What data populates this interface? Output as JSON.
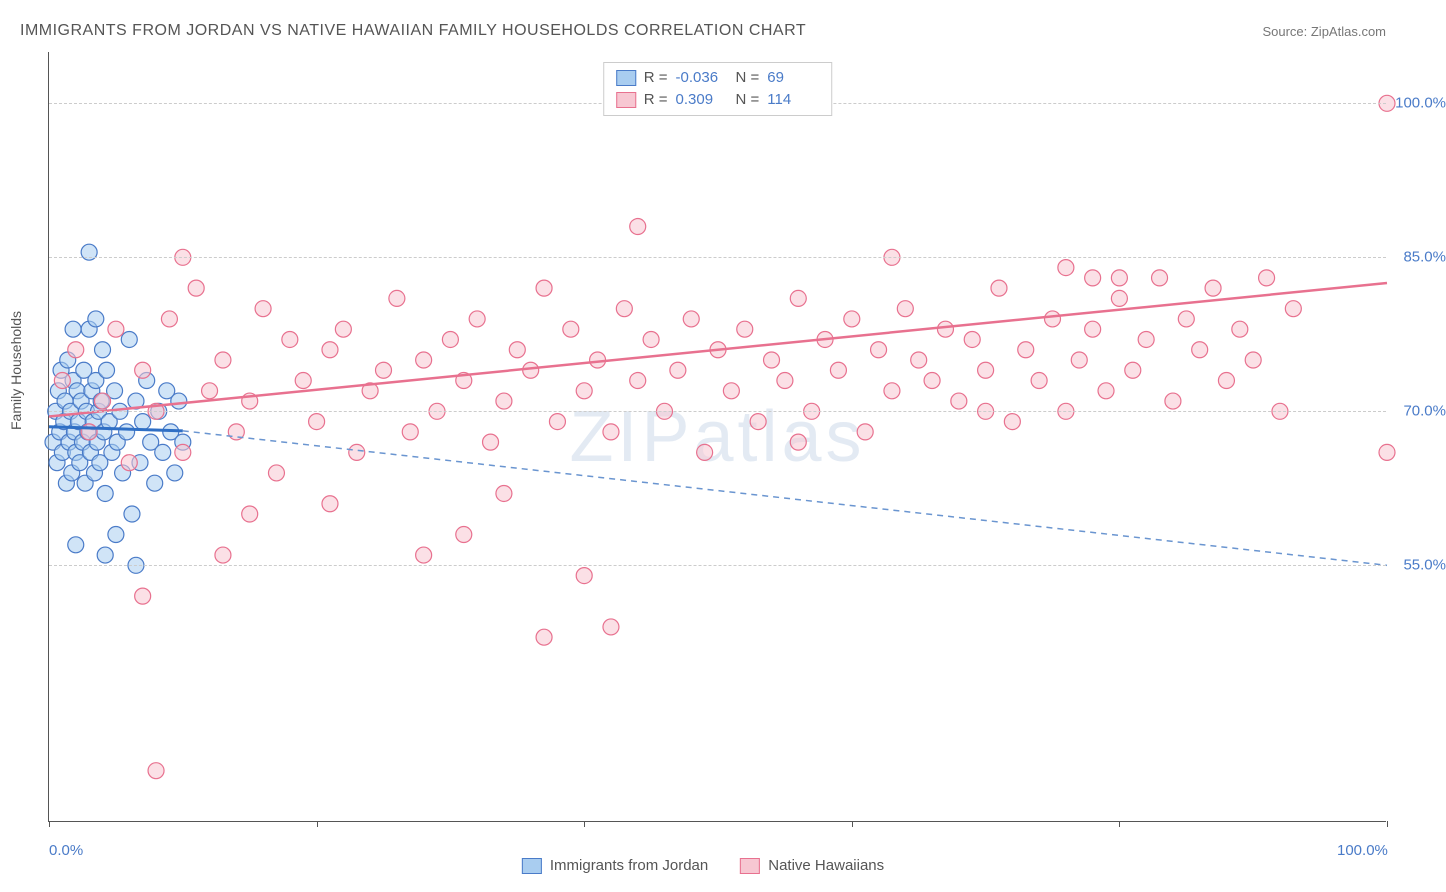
{
  "title": "IMMIGRANTS FROM JORDAN VS NATIVE HAWAIIAN FAMILY HOUSEHOLDS CORRELATION CHART",
  "source_label": "Source: ZipAtlas.com",
  "y_axis_label": "Family Households",
  "watermark": "ZIPatlas",
  "chart": {
    "type": "scatter",
    "xlim": [
      0,
      100
    ],
    "ylim": [
      30,
      105
    ],
    "x_ticks": [
      0,
      20,
      40,
      60,
      80,
      100
    ],
    "x_tick_labels": [
      "0.0%",
      "",
      "",
      "",
      "",
      "100.0%"
    ],
    "y_ticks": [
      55,
      70,
      85,
      100
    ],
    "y_tick_labels": [
      "55.0%",
      "70.0%",
      "85.0%",
      "100.0%"
    ],
    "background_color": "#ffffff",
    "grid_color": "#cccccc",
    "axis_color": "#555555",
    "marker_radius": 8,
    "marker_stroke_width": 1.2,
    "series": [
      {
        "name": "Immigrants from Jordan",
        "fill": "#a9cdf0",
        "stroke": "#4a7bc8",
        "opacity": 0.55,
        "R": "-0.036",
        "N": "69",
        "regression": {
          "x1": 0,
          "y1": 68.5,
          "x2": 10,
          "y2": 68.1,
          "extend_x2": 100,
          "extend_y2": 55.0,
          "solid_color": "#2f6fc5",
          "dash_color": "#6a95d0",
          "width": 2
        },
        "points": [
          [
            0.3,
            67
          ],
          [
            0.5,
            70
          ],
          [
            0.6,
            65
          ],
          [
            0.7,
            72
          ],
          [
            0.8,
            68
          ],
          [
            0.9,
            74
          ],
          [
            1.0,
            66
          ],
          [
            1.1,
            69
          ],
          [
            1.2,
            71
          ],
          [
            1.3,
            63
          ],
          [
            1.4,
            75
          ],
          [
            1.5,
            67
          ],
          [
            1.6,
            70
          ],
          [
            1.7,
            64
          ],
          [
            1.8,
            73
          ],
          [
            1.9,
            68
          ],
          [
            2.0,
            66
          ],
          [
            2.1,
            72
          ],
          [
            2.2,
            69
          ],
          [
            2.3,
            65
          ],
          [
            2.4,
            71
          ],
          [
            2.5,
            67
          ],
          [
            2.6,
            74
          ],
          [
            2.7,
            63
          ],
          [
            2.8,
            70
          ],
          [
            2.9,
            68
          ],
          [
            3.0,
            78
          ],
          [
            3.1,
            66
          ],
          [
            3.2,
            72
          ],
          [
            3.3,
            69
          ],
          [
            3.4,
            64
          ],
          [
            3.5,
            73
          ],
          [
            3.6,
            67
          ],
          [
            3.7,
            70
          ],
          [
            3.8,
            65
          ],
          [
            3.9,
            71
          ],
          [
            4.0,
            76
          ],
          [
            4.1,
            68
          ],
          [
            4.2,
            62
          ],
          [
            4.3,
            74
          ],
          [
            4.5,
            69
          ],
          [
            4.7,
            66
          ],
          [
            4.9,
            72
          ],
          [
            5.1,
            67
          ],
          [
            5.3,
            70
          ],
          [
            5.5,
            64
          ],
          [
            5.8,
            68
          ],
          [
            6.0,
            77
          ],
          [
            6.2,
            60
          ],
          [
            6.5,
            71
          ],
          [
            6.8,
            65
          ],
          [
            7.0,
            69
          ],
          [
            7.3,
            73
          ],
          [
            7.6,
            67
          ],
          [
            7.9,
            63
          ],
          [
            8.2,
            70
          ],
          [
            8.5,
            66
          ],
          [
            8.8,
            72
          ],
          [
            9.1,
            68
          ],
          [
            9.4,
            64
          ],
          [
            9.7,
            71
          ],
          [
            10.0,
            67
          ],
          [
            3.0,
            85.5
          ],
          [
            5.0,
            58
          ],
          [
            6.5,
            55
          ],
          [
            3.5,
            79
          ],
          [
            2.0,
            57
          ],
          [
            4.2,
            56
          ],
          [
            1.8,
            78
          ]
        ]
      },
      {
        "name": "Native Hawaiians",
        "fill": "#f7c7d2",
        "stroke": "#e8718f",
        "opacity": 0.55,
        "R": "0.309",
        "N": "114",
        "regression": {
          "x1": 0,
          "y1": 69.5,
          "x2": 100,
          "y2": 82.5,
          "solid_color": "#e8718f",
          "width": 2.5
        },
        "points": [
          [
            1,
            73
          ],
          [
            2,
            76
          ],
          [
            3,
            68
          ],
          [
            4,
            71
          ],
          [
            5,
            78
          ],
          [
            6,
            65
          ],
          [
            7,
            74
          ],
          [
            8,
            70
          ],
          [
            9,
            79
          ],
          [
            10,
            66
          ],
          [
            11,
            82
          ],
          [
            12,
            72
          ],
          [
            13,
            75
          ],
          [
            14,
            68
          ],
          [
            15,
            71
          ],
          [
            16,
            80
          ],
          [
            17,
            64
          ],
          [
            18,
            77
          ],
          [
            19,
            73
          ],
          [
            20,
            69
          ],
          [
            21,
            76
          ],
          [
            22,
            78
          ],
          [
            23,
            66
          ],
          [
            24,
            72
          ],
          [
            25,
            74
          ],
          [
            26,
            81
          ],
          [
            27,
            68
          ],
          [
            28,
            75
          ],
          [
            29,
            70
          ],
          [
            30,
            77
          ],
          [
            31,
            73
          ],
          [
            32,
            79
          ],
          [
            33,
            67
          ],
          [
            34,
            71
          ],
          [
            35,
            76
          ],
          [
            36,
            74
          ],
          [
            37,
            82
          ],
          [
            38,
            69
          ],
          [
            39,
            78
          ],
          [
            40,
            72
          ],
          [
            41,
            75
          ],
          [
            42,
            68
          ],
          [
            43,
            80
          ],
          [
            44,
            73
          ],
          [
            45,
            77
          ],
          [
            46,
            70
          ],
          [
            47,
            74
          ],
          [
            48,
            79
          ],
          [
            49,
            66
          ],
          [
            50,
            76
          ],
          [
            51,
            72
          ],
          [
            52,
            78
          ],
          [
            53,
            69
          ],
          [
            54,
            75
          ],
          [
            55,
            73
          ],
          [
            56,
            81
          ],
          [
            57,
            70
          ],
          [
            58,
            77
          ],
          [
            59,
            74
          ],
          [
            60,
            79
          ],
          [
            61,
            68
          ],
          [
            62,
            76
          ],
          [
            63,
            72
          ],
          [
            64,
            80
          ],
          [
            65,
            75
          ],
          [
            66,
            73
          ],
          [
            67,
            78
          ],
          [
            68,
            71
          ],
          [
            69,
            77
          ],
          [
            70,
            74
          ],
          [
            71,
            82
          ],
          [
            72,
            69
          ],
          [
            73,
            76
          ],
          [
            74,
            73
          ],
          [
            75,
            79
          ],
          [
            76,
            70
          ],
          [
            77,
            75
          ],
          [
            78,
            78
          ],
          [
            79,
            72
          ],
          [
            80,
            81
          ],
          [
            81,
            74
          ],
          [
            82,
            77
          ],
          [
            83,
            83
          ],
          [
            84,
            71
          ],
          [
            85,
            79
          ],
          [
            86,
            76
          ],
          [
            87,
            82
          ],
          [
            88,
            73
          ],
          [
            89,
            78
          ],
          [
            90,
            75
          ],
          [
            91,
            83
          ],
          [
            92,
            70
          ],
          [
            93,
            80
          ],
          [
            7,
            52
          ],
          [
            8,
            35
          ],
          [
            10,
            85
          ],
          [
            13,
            56
          ],
          [
            15,
            60
          ],
          [
            21,
            61
          ],
          [
            28,
            56
          ],
          [
            31,
            58
          ],
          [
            34,
            62
          ],
          [
            37,
            48
          ],
          [
            40,
            54
          ],
          [
            42,
            49
          ],
          [
            44,
            88
          ],
          [
            56,
            67
          ],
          [
            63,
            85
          ],
          [
            70,
            70
          ],
          [
            76,
            84
          ],
          [
            78,
            83
          ],
          [
            80,
            83
          ],
          [
            100,
            100
          ],
          [
            100,
            66
          ]
        ]
      }
    ]
  },
  "bottom_legend": [
    {
      "label": "Immigrants from Jordan",
      "fill": "#a9cdf0",
      "stroke": "#4a7bc8"
    },
    {
      "label": "Native Hawaiians",
      "fill": "#f7c7d2",
      "stroke": "#e8718f"
    }
  ]
}
